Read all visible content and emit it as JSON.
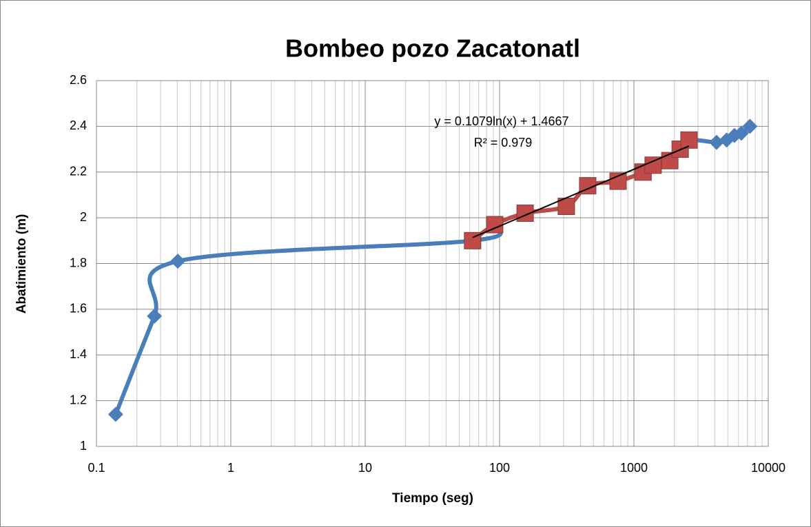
{
  "chart_data": {
    "type": "scatter",
    "title": "Bombeo pozo Zacatonatl",
    "x_label": "Tiempo (seg)",
    "y_label": "Abatimiento (m)",
    "xscale": "log",
    "xlim": [
      0.1,
      10000
    ],
    "xticks": [
      0.1,
      1,
      10,
      100,
      1000,
      10000
    ],
    "ylim": [
      1,
      2.6
    ],
    "yticks": [
      1,
      1.2,
      1.4,
      1.6,
      1.8,
      2,
      2.2,
      2.4,
      2.6
    ],
    "grid": true,
    "minor_grid": true,
    "series": [
      {
        "color": "#4a7ebb",
        "marker": "diamond",
        "smooth": true,
        "x": [
          0.139,
          0.27,
          0.403,
          63,
          92,
          155,
          314,
          453,
          762,
          1170,
          1390,
          1850,
          2210,
          2570,
          4120,
          4900,
          5600,
          6300,
          7300
        ],
        "values": [
          1.14,
          1.57,
          1.81,
          1.9,
          1.97,
          2.02,
          2.05,
          2.14,
          2.16,
          2.2,
          2.23,
          2.25,
          2.3,
          2.34,
          2.33,
          2.34,
          2.36,
          2.37,
          2.4
        ]
      },
      {
        "color": "#be4b48",
        "marker": "square",
        "smooth": true,
        "x": [
          63,
          92,
          155,
          314,
          453,
          762,
          1170,
          1390,
          1850,
          2210,
          2570
        ],
        "values": [
          1.9,
          1.97,
          2.02,
          2.05,
          2.14,
          2.16,
          2.2,
          2.23,
          2.25,
          2.3,
          2.34
        ]
      }
    ],
    "trendline": {
      "a": 0.1079,
      "b": 1.4667,
      "x_range": [
        63,
        2570
      ],
      "color": "#000000",
      "equation": "y = 0.1079ln(x) + 1.4667",
      "r2": "R² = 0.979"
    }
  }
}
